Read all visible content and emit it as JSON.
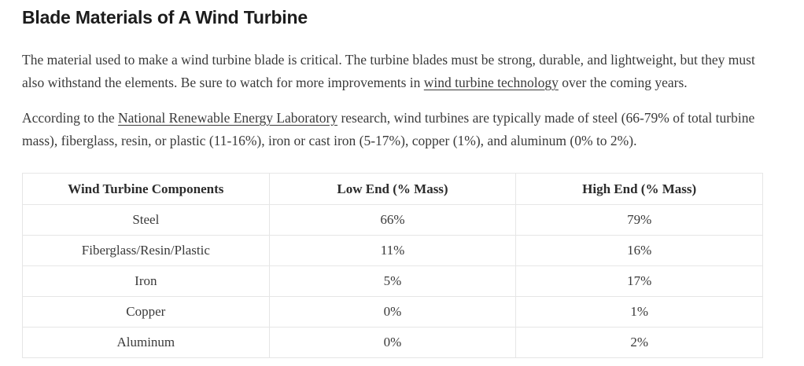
{
  "article": {
    "title": "Blade Materials of A Wind Turbine",
    "paragraph1": {
      "pre": "The material used to make a wind turbine blade is critical. The turbine blades must be strong, durable, and lightweight, but they must also withstand the elements. Be sure to watch for more improvements in ",
      "link_label": "wind turbine technology",
      "post": " over the coming years."
    },
    "paragraph2": {
      "pre": "According to the ",
      "link_label": "National Renewable Energy Laboratory",
      "post": " research, wind turbines are typically made of steel (66-79% of total turbine mass), fiberglass, resin, or plastic (11-16%), iron or cast iron (5-17%), copper (1%), and aluminum (0% to 2%)."
    },
    "table": {
      "headers": [
        "Wind Turbine Components",
        "Low End (% Mass)",
        "High End (% Mass)"
      ],
      "rows": [
        [
          "Steel",
          "66%",
          "79%"
        ],
        [
          "Fiberglass/Resin/Plastic",
          "11%",
          "16%"
        ],
        [
          "Iron",
          "5%",
          "17%"
        ],
        [
          "Copper",
          "0%",
          "1%"
        ],
        [
          "Aluminum",
          "0%",
          "2%"
        ]
      ]
    },
    "colors": {
      "heading_text": "#1c1c1c",
      "body_text": "#3a3a3a",
      "table_border": "#e6e6e6",
      "background": "#ffffff"
    }
  }
}
